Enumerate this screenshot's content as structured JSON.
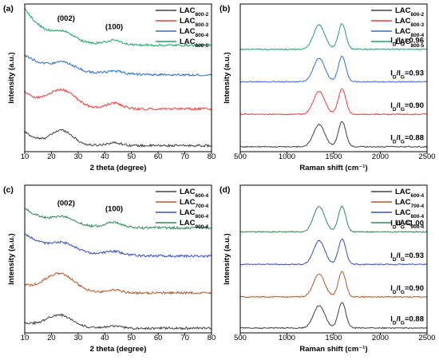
{
  "chart_data": [
    {
      "id": "a",
      "panel_label": "(a)",
      "type": "line",
      "xlabel": "2 theta (degree)",
      "ylabel": "Intensity (a.u.)",
      "xlim": [
        10,
        80
      ],
      "xticks": [
        10,
        20,
        30,
        40,
        50,
        60,
        70,
        80
      ],
      "yticks_shown": false,
      "legend_position": "top-right",
      "annotations": [
        {
          "text": "(002)",
          "x": 25.5
        },
        {
          "text": "(100)",
          "x": 43.5
        }
      ],
      "series": [
        {
          "base": "LAC",
          "sub": "800-2",
          "color": "#404040",
          "offset": 0.0,
          "profile": "xrd_a1"
        },
        {
          "base": "LAC",
          "sub": "800-3",
          "color": "#ee3b3b",
          "offset": 0.26,
          "profile": "xrd_a2"
        },
        {
          "base": "LAC",
          "sub": "800-4",
          "color": "#2f6fd6",
          "offset": 0.5,
          "profile": "xrd_a3"
        },
        {
          "base": "LAC",
          "sub": "800-5",
          "color": "#1fa56a",
          "offset": 0.72,
          "profile": "xrd_a4"
        }
      ]
    },
    {
      "id": "b",
      "panel_label": "(b)",
      "type": "line",
      "xlabel": "Raman shift (cm⁻¹)",
      "ylabel": "Intensity (a.u.)",
      "xlim": [
        500,
        2500
      ],
      "xticks": [
        500,
        1000,
        1500,
        2000,
        2500
      ],
      "yticks_shown": false,
      "legend_position": "top-right",
      "series": [
        {
          "base": "LAC",
          "sub": "800-2",
          "color": "#404040",
          "offset": 0.0,
          "id_ig": "0.88"
        },
        {
          "base": "LAC",
          "sub": "800-3",
          "color": "#ee3b3b",
          "offset": 0.23,
          "id_ig": "0.90"
        },
        {
          "base": "LAC",
          "sub": "800-4",
          "color": "#2f6fd6",
          "offset": 0.46,
          "id_ig": "0.93"
        },
        {
          "base": "LAC",
          "sub": "800-5",
          "color": "#1fa56a",
          "offset": 0.69,
          "id_ig": "0.96"
        }
      ]
    },
    {
      "id": "c",
      "panel_label": "(c)",
      "type": "line",
      "xlabel": "2 theta (degree)",
      "ylabel": "Intensity (a.u.)",
      "xlim": [
        10,
        80
      ],
      "xticks": [
        10,
        20,
        30,
        40,
        50,
        60,
        70,
        80
      ],
      "yticks_shown": false,
      "legend_position": "top-right",
      "annotations": [
        {
          "text": "(002)",
          "x": 25.5
        },
        {
          "text": "(100)",
          "x": 43.5
        }
      ],
      "series": [
        {
          "base": "LAC",
          "sub": "600-4",
          "color": "#404040",
          "offset": 0.0,
          "profile": "xrd_c1"
        },
        {
          "base": "LAC",
          "sub": "700-4",
          "color": "#b4592a",
          "offset": 0.25,
          "profile": "xrd_c2"
        },
        {
          "base": "LAC",
          "sub": "800-4",
          "color": "#3a4fc4",
          "offset": 0.5,
          "profile": "xrd_c3"
        },
        {
          "base": "LAC",
          "sub": "900-4",
          "color": "#2e8b57",
          "offset": 0.7,
          "profile": "xrd_c4"
        }
      ]
    },
    {
      "id": "d",
      "panel_label": "(d)",
      "type": "line",
      "xlabel": "Raman shift (cm⁻¹)",
      "ylabel": "Intensity (a.u.)",
      "xlim": [
        500,
        2500
      ],
      "xticks": [
        500,
        1000,
        1500,
        2000,
        2500
      ],
      "yticks_shown": false,
      "legend_position": "top-right",
      "series": [
        {
          "base": "LAC",
          "sub": "600-4",
          "color": "#404040",
          "offset": 0.0,
          "id_ig": "0.88"
        },
        {
          "base": "LAC",
          "sub": "700-4",
          "color": "#b4592a",
          "offset": 0.22,
          "id_ig": "0.90"
        },
        {
          "base": "LAC",
          "sub": "800-4",
          "color": "#3a4fc4",
          "offset": 0.45,
          "id_ig": "0.93"
        },
        {
          "base": "LAC",
          "sub": "900-4",
          "color": "#2e8b57",
          "offset": 0.68,
          "id_ig": "1.00"
        }
      ]
    }
  ]
}
